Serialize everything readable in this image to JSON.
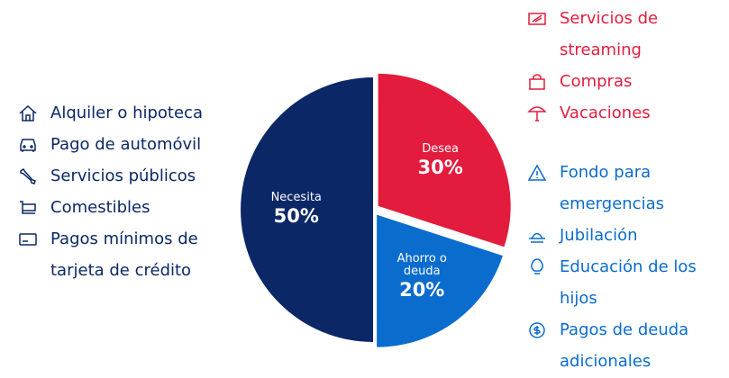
{
  "chart_data": {
    "type": "pie",
    "categories": [
      "Necesita",
      "Desea",
      "Ahorro o deuda"
    ],
    "values": [
      50,
      30,
      20
    ],
    "value_labels": [
      "50%",
      "30%",
      "20%"
    ],
    "colors": [
      "#0b2766",
      "#e31c3d",
      "#0a6ccd"
    ]
  },
  "needs": [
    "Alquiler o hipoteca",
    "Pago de automóvil",
    "Servicios públicos",
    "Comestibles",
    "Pagos mínimos de tarjeta de crédito"
  ],
  "wants": [
    "Servicios de streaming",
    "Compras",
    "Vacaciones"
  ],
  "savings": [
    "Fondo para emergencias",
    "Jubilación",
    "Educación de los hijos",
    "Pagos de deuda adicionales"
  ]
}
